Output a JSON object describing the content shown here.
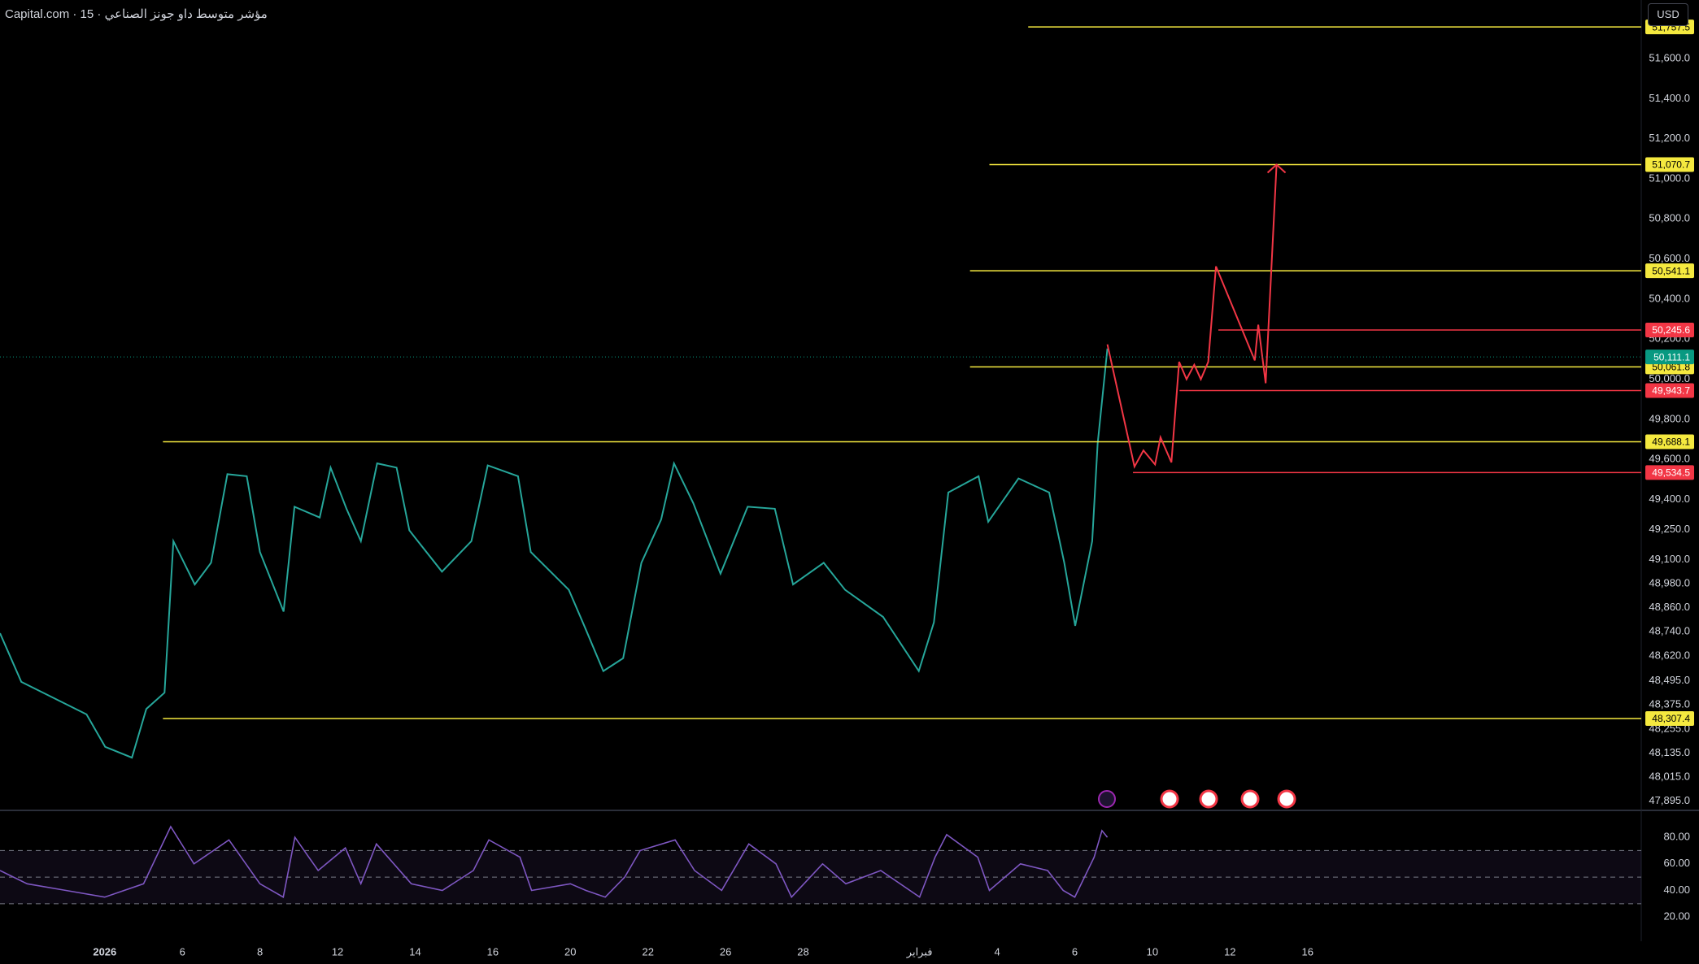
{
  "chart_data": [
    {
      "type": "line",
      "title": "مؤشر متوسط داو جونز الصناعي · 15 · Capital.com",
      "xlim": [
        -1.7,
        40.6
      ],
      "ylim": [
        47853,
        51892
      ],
      "xticks": [
        {
          "value": 1,
          "label": "2026"
        },
        {
          "value": 3,
          "label": "6"
        },
        {
          "value": 5,
          "label": "8"
        },
        {
          "value": 7,
          "label": "12"
        },
        {
          "value": 9,
          "label": "14"
        },
        {
          "value": 11,
          "label": "16"
        },
        {
          "value": 13,
          "label": "20"
        },
        {
          "value": 15,
          "label": "22"
        },
        {
          "value": 17,
          "label": "26"
        },
        {
          "value": 19,
          "label": "28"
        },
        {
          "value": 22,
          "label": "فبراير"
        },
        {
          "value": 24,
          "label": "4"
        },
        {
          "value": 26,
          "label": "6"
        },
        {
          "value": 28,
          "label": "10"
        },
        {
          "value": 30,
          "label": "12"
        },
        {
          "value": 32,
          "label": "16"
        }
      ],
      "yticks": [
        {
          "value": 51600,
          "label": "51,600.0"
        },
        {
          "value": 51400,
          "label": "51,400.0"
        },
        {
          "value": 51200,
          "label": "51,200.0"
        },
        {
          "value": 51000,
          "label": "51,000.0"
        },
        {
          "value": 50800,
          "label": "50,800.0"
        },
        {
          "value": 50600,
          "label": "50,600.0"
        },
        {
          "value": 50400,
          "label": "50,400.0"
        },
        {
          "value": 50200,
          "label": "50,200.0"
        },
        {
          "value": 50000,
          "label": "50,000.0"
        },
        {
          "value": 49800,
          "label": "49,800.0"
        },
        {
          "value": 49600,
          "label": "49,600.0"
        },
        {
          "value": 49400,
          "label": "49,400.0"
        },
        {
          "value": 49250,
          "label": "49,250.0"
        },
        {
          "value": 49100,
          "label": "49,100.0"
        },
        {
          "value": 48980,
          "label": "48,980.0"
        },
        {
          "value": 48860,
          "label": "48,860.0"
        },
        {
          "value": 48740,
          "label": "48,740.0"
        },
        {
          "value": 48620,
          "label": "48,620.0"
        },
        {
          "value": 48495,
          "label": "48,495.0"
        },
        {
          "value": 48375,
          "label": "48,375.0"
        },
        {
          "value": 48255,
          "label": "48,255.0"
        },
        {
          "value": 48135,
          "label": "48,135.0"
        },
        {
          "value": 48015,
          "label": "48,015.0"
        },
        {
          "value": 47895,
          "label": "47,895.0"
        }
      ],
      "grid": false,
      "x": [
        -1.7,
        -1.15,
        -0.31,
        0.53,
        1.01,
        1.7,
        2.07,
        2.54,
        2.77,
        3.32,
        3.74,
        4.16,
        4.66,
        5.0,
        5.61,
        5.89,
        6.54,
        6.82,
        7.23,
        7.6,
        8.02,
        8.52,
        8.85,
        9.69,
        10.45,
        10.87,
        11.65,
        11.98,
        12.96,
        13.38,
        13.85,
        14.36,
        14.83,
        15.34,
        15.67,
        16.17,
        16.87,
        17.57,
        18.27,
        18.74,
        19.53,
        20.08,
        21.06,
        21.98,
        22.37,
        22.74,
        23.52,
        23.77,
        24.55,
        25.34,
        25.73,
        26.01,
        26.45,
        26.59,
        26.84
      ],
      "series": [
        {
          "color": "#26a69a",
          "values": [
            48733,
            48490,
            48409,
            48328,
            48166,
            48112,
            48355,
            48436,
            49192,
            48976,
            49084,
            49526,
            49516,
            49138,
            48841,
            49364,
            49310,
            49559,
            49354,
            49192,
            49580,
            49559,
            49246,
            49040,
            49192,
            49570,
            49516,
            49138,
            48949,
            48760,
            48544,
            48608,
            49084,
            49300,
            49580,
            49381,
            49030,
            49364,
            49354,
            48976,
            49084,
            48949,
            48814,
            48544,
            48787,
            49435,
            49516,
            49289,
            49505,
            49435,
            49084,
            48770,
            49192,
            49678,
            50153
          ]
        }
      ],
      "levels": [
        {
          "value": 51757.5,
          "label": "51,757.5",
          "color": "#f5e93f",
          "start": 24.8
        },
        {
          "value": 51070.7,
          "label": "51,070.7",
          "color": "#f5e93f",
          "start": 23.8
        },
        {
          "value": 50541.1,
          "label": "50,541.1",
          "color": "#f5e93f",
          "start": 23.3
        },
        {
          "value": 50245.6,
          "label": "50,245.6",
          "color": "#f23645",
          "start": 29.7
        },
        {
          "value": 50061.8,
          "label": "50,061.8",
          "color": "#f5e93f",
          "start": 23.3
        },
        {
          "value": 49943.7,
          "label": "49,943.7",
          "color": "#f23645",
          "start": 28.7
        },
        {
          "value": 49688.1,
          "label": "49,688.1",
          "color": "#f5e93f",
          "start": 2.5
        },
        {
          "value": 49534.5,
          "label": "49,534.5",
          "color": "#f23645",
          "start": 27.5
        },
        {
          "value": 48307.4,
          "label": "48,307.4",
          "color": "#f5e93f",
          "start": 2.5
        }
      ],
      "last_price": {
        "value": 50111.1,
        "label": "50,111.1",
        "color": "#089981"
      },
      "projection": {
        "color": "#f23645",
        "x": [
          26.84,
          27.54,
          27.77,
          28.07,
          28.21,
          28.49,
          28.69,
          28.88,
          29.08,
          29.25,
          29.44,
          29.64,
          30.64,
          30.73,
          30.92,
          31.2
        ],
        "values": [
          50174,
          49564,
          49645,
          49575,
          49710,
          49585,
          50087,
          50000,
          50072,
          50000,
          50087,
          50563,
          50094,
          50272,
          49980,
          51071
        ]
      }
    },
    {
      "type": "line",
      "xlim": [
        -1.7,
        40.6
      ],
      "ylim": [
        3,
        99
      ],
      "yticks": [
        {
          "value": 80,
          "label": "80.00"
        },
        {
          "value": 60,
          "label": "60.00"
        },
        {
          "value": 40,
          "label": "40.00"
        },
        {
          "value": 20,
          "label": "20.00"
        }
      ],
      "levels": [
        70,
        50,
        30
      ],
      "x": [
        -1.7,
        -1,
        0,
        1,
        2,
        2.7,
        3.3,
        4.2,
        5,
        5.6,
        5.9,
        6.5,
        7.2,
        7.6,
        8,
        8.9,
        9.7,
        10.5,
        10.9,
        11.7,
        12,
        13,
        13.4,
        13.9,
        14.4,
        14.8,
        15.7,
        16.2,
        16.9,
        17.6,
        18.3,
        18.7,
        19.5,
        20.1,
        21,
        22,
        22.4,
        22.7,
        23.5,
        23.8,
        24.6,
        25.3,
        25.7,
        26,
        26.5,
        26.7,
        26.84
      ],
      "series": [
        {
          "color": "#7e57c2",
          "values": [
            55,
            45,
            40,
            35,
            45,
            88,
            60,
            78,
            45,
            35,
            80,
            55,
            72,
            45,
            75,
            45,
            40,
            55,
            78,
            65,
            40,
            45,
            40,
            35,
            50,
            70,
            78,
            55,
            40,
            75,
            60,
            35,
            60,
            45,
            55,
            35,
            65,
            82,
            65,
            40,
            60,
            55,
            40,
            35,
            65,
            85,
            80
          ]
        }
      ]
    }
  ],
  "ui": {
    "currency": "USD"
  }
}
